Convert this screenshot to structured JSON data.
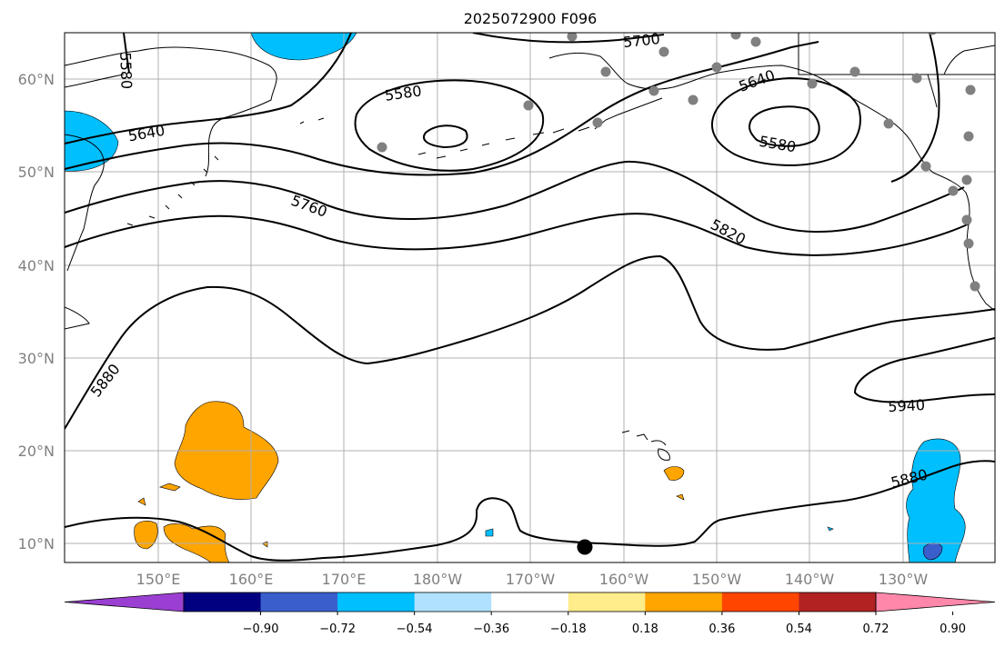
{
  "title": "2025072900 F096",
  "lat_labels": [
    "60°N",
    "50°N",
    "40°N",
    "30°N",
    "20°N",
    "10°N"
  ],
  "lon_labels": [
    "150°E",
    "160°E",
    "170°E",
    "180°W",
    "170°W",
    "160°W",
    "150°W",
    "140°W",
    "130°W"
  ],
  "contour_labels": [
    "5580",
    "5640",
    "5580",
    "5760",
    "5700",
    "5640",
    "5580",
    "5820",
    "5880",
    "5940",
    "5880"
  ],
  "colorbar": {
    "tick_labels": [
      "−0.90",
      "−0.72",
      "−0.54",
      "−0.36",
      "−0.18",
      "0.18",
      "0.36",
      "0.54",
      "0.72",
      "0.90"
    ],
    "colors": [
      "#9b3fd2",
      "#000080",
      "#3a5fcd",
      "#00bfff",
      "#b0e2ff",
      "#ffffff",
      "#ffec8b",
      "#ffa500",
      "#ff4500",
      "#b22222",
      "#ff88aa"
    ]
  },
  "colors": {
    "positive_anomaly": "#ffa500",
    "negative_anomaly": "#00bfff",
    "strong_negative": "#3a5fcd",
    "station_dot": "#808080",
    "contour": "#000000",
    "grid": "#b0b0b0"
  }
}
